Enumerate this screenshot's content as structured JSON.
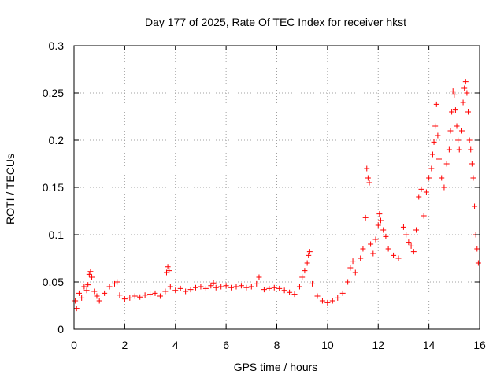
{
  "chart_data": {
    "type": "scatter",
    "title": "Day 177 of 2025, Rate Of TEC Index for receiver hkst",
    "xlabel": "GPS time / hours",
    "ylabel": "ROTI / TECUs",
    "xlim": [
      0,
      16
    ],
    "ylim": [
      0,
      0.3
    ],
    "xticks": [
      0,
      2,
      4,
      6,
      8,
      10,
      12,
      14,
      16
    ],
    "xtick_labels": [
      "0",
      "2",
      "4",
      "6",
      "8",
      "10",
      "12",
      "14",
      "16"
    ],
    "yticks": [
      0,
      0.05,
      0.1,
      0.15,
      0.2,
      0.25,
      0.3
    ],
    "ytick_labels": [
      "0",
      "0.05",
      "0.1",
      "0.15",
      "0.2",
      "0.25",
      "0.3"
    ],
    "grid": true,
    "marker": "+",
    "colors": {
      "marker": "#ff0000",
      "grid": "#a0a0a0",
      "axes": "#000000"
    },
    "series": [
      {
        "name": "ROTI",
        "points": [
          [
            0.05,
            0.03
          ],
          [
            0.1,
            0.022
          ],
          [
            0.2,
            0.038
          ],
          [
            0.3,
            0.033
          ],
          [
            0.4,
            0.045
          ],
          [
            0.5,
            0.041
          ],
          [
            0.55,
            0.047
          ],
          [
            0.6,
            0.058
          ],
          [
            0.65,
            0.061
          ],
          [
            0.7,
            0.055
          ],
          [
            0.8,
            0.04
          ],
          [
            0.9,
            0.035
          ],
          [
            1.0,
            0.03
          ],
          [
            1.2,
            0.038
          ],
          [
            1.4,
            0.045
          ],
          [
            1.6,
            0.048
          ],
          [
            1.7,
            0.05
          ],
          [
            1.8,
            0.036
          ],
          [
            2.0,
            0.032
          ],
          [
            2.2,
            0.033
          ],
          [
            2.4,
            0.035
          ],
          [
            2.6,
            0.034
          ],
          [
            2.8,
            0.036
          ],
          [
            3.0,
            0.037
          ],
          [
            3.2,
            0.038
          ],
          [
            3.4,
            0.035
          ],
          [
            3.6,
            0.04
          ],
          [
            3.65,
            0.06
          ],
          [
            3.7,
            0.066
          ],
          [
            3.75,
            0.062
          ],
          [
            3.8,
            0.045
          ],
          [
            4.0,
            0.041
          ],
          [
            4.2,
            0.043
          ],
          [
            4.4,
            0.04
          ],
          [
            4.6,
            0.042
          ],
          [
            4.8,
            0.044
          ],
          [
            5.0,
            0.045
          ],
          [
            5.2,
            0.043
          ],
          [
            5.4,
            0.046
          ],
          [
            5.5,
            0.049
          ],
          [
            5.6,
            0.044
          ],
          [
            5.8,
            0.045
          ],
          [
            6.0,
            0.046
          ],
          [
            6.2,
            0.044
          ],
          [
            6.4,
            0.045
          ],
          [
            6.6,
            0.046
          ],
          [
            6.8,
            0.044
          ],
          [
            7.0,
            0.045
          ],
          [
            7.2,
            0.048
          ],
          [
            7.3,
            0.055
          ],
          [
            7.5,
            0.042
          ],
          [
            7.7,
            0.043
          ],
          [
            7.9,
            0.044
          ],
          [
            8.1,
            0.043
          ],
          [
            8.3,
            0.041
          ],
          [
            8.5,
            0.039
          ],
          [
            8.7,
            0.037
          ],
          [
            8.9,
            0.045
          ],
          [
            9.0,
            0.055
          ],
          [
            9.1,
            0.062
          ],
          [
            9.2,
            0.07
          ],
          [
            9.25,
            0.078
          ],
          [
            9.3,
            0.082
          ],
          [
            9.4,
            0.048
          ],
          [
            9.6,
            0.035
          ],
          [
            9.8,
            0.03
          ],
          [
            10.0,
            0.028
          ],
          [
            10.2,
            0.03
          ],
          [
            10.4,
            0.033
          ],
          [
            10.6,
            0.038
          ],
          [
            10.8,
            0.05
          ],
          [
            10.9,
            0.065
          ],
          [
            11.0,
            0.072
          ],
          [
            11.1,
            0.06
          ],
          [
            11.3,
            0.075
          ],
          [
            11.4,
            0.085
          ],
          [
            11.5,
            0.118
          ],
          [
            11.55,
            0.17
          ],
          [
            11.6,
            0.16
          ],
          [
            11.65,
            0.155
          ],
          [
            11.7,
            0.09
          ],
          [
            11.8,
            0.08
          ],
          [
            11.9,
            0.095
          ],
          [
            12.0,
            0.11
          ],
          [
            12.05,
            0.122
          ],
          [
            12.1,
            0.115
          ],
          [
            12.2,
            0.105
          ],
          [
            12.3,
            0.098
          ],
          [
            12.4,
            0.085
          ],
          [
            12.6,
            0.078
          ],
          [
            12.8,
            0.075
          ],
          [
            13.0,
            0.108
          ],
          [
            13.1,
            0.1
          ],
          [
            13.2,
            0.092
          ],
          [
            13.3,
            0.088
          ],
          [
            13.4,
            0.082
          ],
          [
            13.5,
            0.105
          ],
          [
            13.6,
            0.14
          ],
          [
            13.7,
            0.148
          ],
          [
            13.8,
            0.12
          ],
          [
            13.9,
            0.145
          ],
          [
            14.0,
            0.16
          ],
          [
            14.1,
            0.17
          ],
          [
            14.15,
            0.185
          ],
          [
            14.2,
            0.198
          ],
          [
            14.25,
            0.215
          ],
          [
            14.3,
            0.238
          ],
          [
            14.35,
            0.205
          ],
          [
            14.4,
            0.18
          ],
          [
            14.5,
            0.16
          ],
          [
            14.6,
            0.15
          ],
          [
            14.7,
            0.175
          ],
          [
            14.8,
            0.19
          ],
          [
            14.85,
            0.21
          ],
          [
            14.9,
            0.23
          ],
          [
            14.95,
            0.252
          ],
          [
            15.0,
            0.248
          ],
          [
            15.05,
            0.232
          ],
          [
            15.1,
            0.215
          ],
          [
            15.15,
            0.2
          ],
          [
            15.2,
            0.19
          ],
          [
            15.3,
            0.21
          ],
          [
            15.35,
            0.24
          ],
          [
            15.4,
            0.255
          ],
          [
            15.45,
            0.262
          ],
          [
            15.5,
            0.25
          ],
          [
            15.55,
            0.23
          ],
          [
            15.6,
            0.2
          ],
          [
            15.65,
            0.19
          ],
          [
            15.7,
            0.175
          ],
          [
            15.75,
            0.16
          ],
          [
            15.8,
            0.13
          ],
          [
            15.85,
            0.1
          ],
          [
            15.9,
            0.085
          ],
          [
            15.95,
            0.07
          ]
        ]
      }
    ]
  }
}
